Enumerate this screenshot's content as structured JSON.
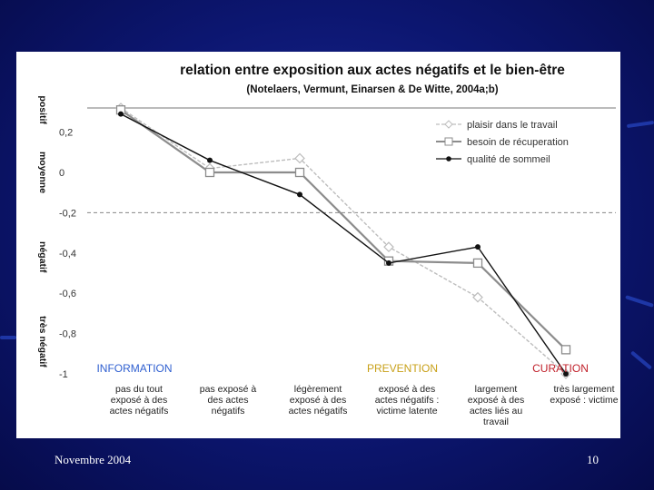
{
  "slide": {
    "footer_date": "Novembre 2004",
    "page_number": "10",
    "background_color": "#0c1670",
    "footer_color": "#ffffff"
  },
  "chart_data": {
    "type": "line",
    "title": "relation entre exposition aux actes négatifs et le bien-être",
    "subtitle": "(Notelaers, Vermunt, Einarsen & De Witte, 2004a;b)",
    "categories": [
      "pas du tout exposé à des actes négatifs",
      "pas exposé à des actes négatifs",
      "légèrement exposé à des actes négatifs",
      "exposé à des actes négatifs : victime latente",
      "largement exposé à des actes liés au travail",
      "très largement exposé : victime"
    ],
    "category_lines": [
      [
        "pas du tout",
        "exposé à des",
        "actes négatifs"
      ],
      [
        "pas  exposé à",
        "des actes",
        "négatifs"
      ],
      [
        "légèrement",
        "exposé à des",
        "actes négatifs"
      ],
      [
        "exposé à des",
        "actes négatifs :",
        "victime latente"
      ],
      [
        "largement",
        "exposé à des",
        "actes liés au",
        "travail"
      ],
      [
        "très largement",
        "exposé : victime"
      ]
    ],
    "y_ticks": [
      "0,2",
      "0",
      "-0,2",
      "-0,4",
      "-0,6",
      "-0,8",
      "-1"
    ],
    "y_tick_values": [
      0.2,
      0,
      -0.2,
      -0.4,
      -0.6,
      -0.8,
      -1
    ],
    "ylim": [
      -1,
      0.35
    ],
    "reference_line": -0.2,
    "ylabel_zones": [
      "positif",
      "moyenne",
      "négatif",
      "très négatif"
    ],
    "zone_label_values": [
      0.31,
      0.0,
      -0.42,
      -0.84
    ],
    "series": [
      {
        "name": "plaisir dans le travail",
        "values": [
          0.32,
          0.02,
          0.07,
          -0.37,
          -0.62,
          -1.0
        ],
        "color": "#bdbdbd",
        "marker": "diamond",
        "dashed": true
      },
      {
        "name": "besoin de récuperation",
        "values": [
          0.31,
          0.0,
          0.0,
          -0.44,
          -0.45,
          -0.88
        ],
        "color": "#8c8c8c",
        "marker": "square",
        "dashed": false
      },
      {
        "name": "qualité de sommeil",
        "values": [
          0.29,
          0.06,
          -0.11,
          -0.45,
          -0.37,
          -1.0
        ],
        "color": "#111111",
        "marker": "dot",
        "dashed": false
      }
    ],
    "annotations": [
      {
        "text": "INFORMATION",
        "category_index": 0,
        "color": "#2f5fd0"
      },
      {
        "text": "PREVENTION",
        "category_index": 3,
        "color": "#c8a018"
      },
      {
        "text": "CURATION",
        "category_index": 5,
        "color": "#c0202a"
      }
    ],
    "legend_position": "top-right",
    "grid": false
  }
}
